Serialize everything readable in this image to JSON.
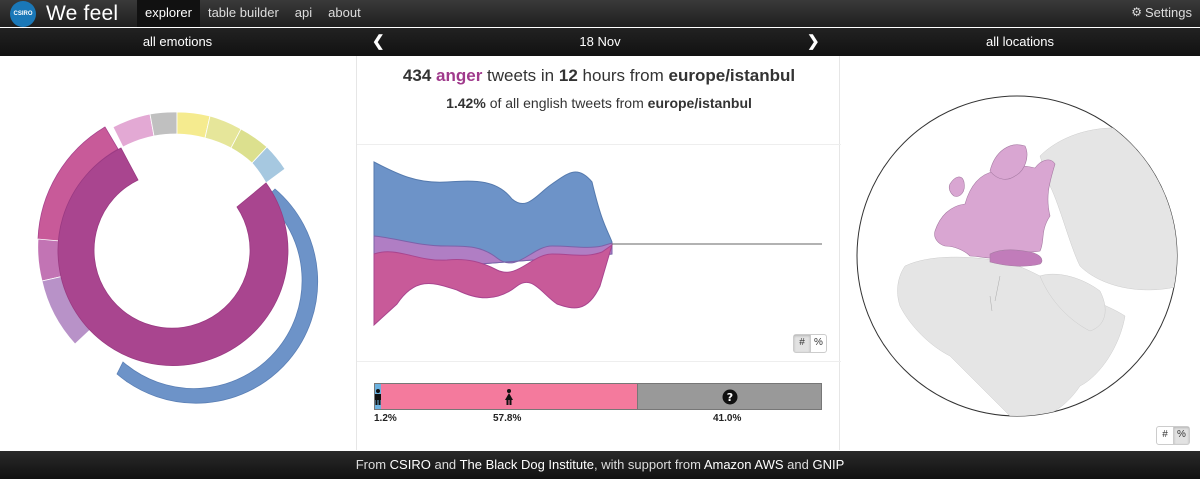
{
  "brand": {
    "logo_text": "CSIRO",
    "title": "We feel"
  },
  "nav": {
    "items": [
      "explorer",
      "table builder",
      "api",
      "about"
    ],
    "active_index": 0
  },
  "settings_label": "Settings",
  "subbar": {
    "emotions": "all emotions",
    "date": "18 Nov",
    "locations": "all locations"
  },
  "headline": {
    "count": "434",
    "emotion": "anger",
    "text1": "tweets in",
    "hours": "12",
    "text2": "hours from",
    "location": "europe/istanbul"
  },
  "subline": {
    "percent": "1.42%",
    "text": "of all english tweets from",
    "location": "europe/istanbul"
  },
  "toggle": {
    "count": "#",
    "percent": "%"
  },
  "gender": {
    "male_pct": "1.2%",
    "female_pct": "57.8%",
    "unknown_pct": "41.0%",
    "male_value": 1.2,
    "female_value": 57.8,
    "unknown_value": 41.0
  },
  "colors": {
    "anger": "#a9458f",
    "blue": "#6d93c8",
    "map_highlight": "#d9a6d2",
    "land": "#e5e5e5"
  },
  "footer": {
    "t1": "From",
    "csiro": "CSIRO",
    "t2": "and",
    "bdi": "The Black Dog Institute",
    "t3": ", with support from",
    "aws": "Amazon AWS",
    "t4": "and",
    "gnip": "GNIP"
  }
}
